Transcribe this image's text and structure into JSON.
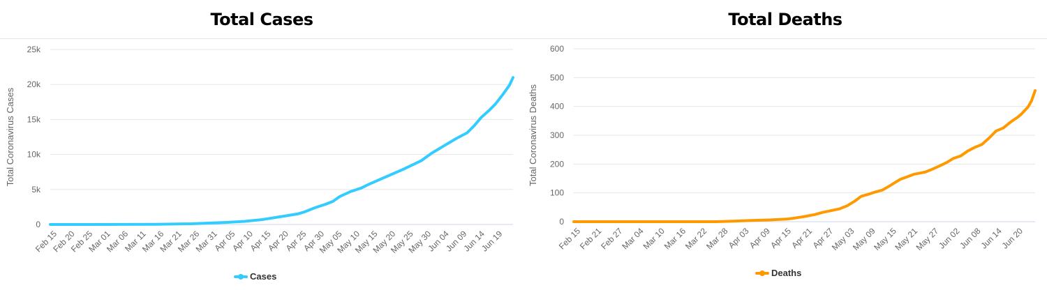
{
  "chart_data": [
    {
      "type": "line",
      "title": "Total Cases",
      "xlabel": "",
      "ylabel": "Total Coronavirus Cases",
      "ylim": [
        0,
        25000
      ],
      "y_ticks": [
        0,
        5000,
        10000,
        15000,
        20000,
        25000
      ],
      "y_tick_labels": [
        "0",
        "5k",
        "10k",
        "15k",
        "20k",
        "25k"
      ],
      "x_tick_labels": [
        "Feb 15",
        "Feb 20",
        "Feb 25",
        "Mar 01",
        "Mar 06",
        "Mar 11",
        "Mar 16",
        "Mar 21",
        "Mar 26",
        "Mar 31",
        "Apr 05",
        "Apr 10",
        "Apr 15",
        "Apr 20",
        "Apr 25",
        "Apr 30",
        "May 05",
        "May 10",
        "May 15",
        "May 20",
        "May 25",
        "May 30",
        "Jun 04",
        "Jun 09",
        "Jun 14",
        "Jun 19"
      ],
      "x_range_days": [
        0,
        131
      ],
      "series": [
        {
          "name": "Cases",
          "color": "#33ccff",
          "x_days": [
            0,
            20,
            30,
            40,
            45,
            50,
            55,
            60,
            65,
            70,
            72,
            75,
            78,
            80,
            82,
            85,
            88,
            90,
            95,
            100,
            105,
            108,
            110,
            113,
            115,
            118,
            120,
            122,
            124,
            126,
            128,
            130,
            131
          ],
          "values": [
            0,
            5,
            30,
            100,
            200,
            300,
            450,
            700,
            1100,
            1500,
            1800,
            2400,
            2900,
            3300,
            4000,
            4700,
            5200,
            5700,
            6800,
            7900,
            9100,
            10200,
            10800,
            11700,
            12300,
            13100,
            14100,
            15300,
            16200,
            17200,
            18500,
            19900,
            21000
          ]
        }
      ]
    },
    {
      "type": "line",
      "title": "Total Deaths",
      "xlabel": "",
      "ylabel": "Total Coronavirus Deaths",
      "ylim": [
        0,
        600
      ],
      "y_ticks": [
        0,
        100,
        200,
        300,
        400,
        500,
        600
      ],
      "y_tick_labels": [
        "0",
        "100",
        "200",
        "300",
        "400",
        "500",
        "600"
      ],
      "x_tick_labels": [
        "Feb 15",
        "Feb 21",
        "Feb 27",
        "Mar 04",
        "Mar 10",
        "Mar 16",
        "Mar 22",
        "Mar 28",
        "Apr 03",
        "Apr 09",
        "Apr 15",
        "Apr 21",
        "Apr 27",
        "May 03",
        "May 09",
        "May 15",
        "May 21",
        "May 27",
        "Jun 02",
        "Jun 08",
        "Jun 14",
        "Jun 20"
      ],
      "x_range_days": [
        0,
        130
      ],
      "series": [
        {
          "name": "Deaths",
          "color": "#ff9900",
          "x_days": [
            0,
            40,
            45,
            50,
            55,
            60,
            62,
            65,
            68,
            70,
            72,
            75,
            77,
            79,
            81,
            83,
            85,
            87,
            89,
            92,
            94,
            96,
            99,
            101,
            103,
            105,
            107,
            109,
            111,
            113,
            115,
            117,
            119,
            121,
            123,
            125,
            126,
            127,
            128,
            129,
            130
          ],
          "values": [
            0,
            0,
            2,
            4,
            6,
            9,
            12,
            18,
            25,
            32,
            37,
            45,
            55,
            70,
            88,
            95,
            103,
            110,
            124,
            147,
            156,
            165,
            172,
            182,
            193,
            205,
            220,
            228,
            245,
            258,
            268,
            290,
            315,
            325,
            345,
            362,
            372,
            385,
            398,
            420,
            455
          ]
        }
      ]
    }
  ],
  "legend": {
    "cases_label": "Cases",
    "deaths_label": "Deaths"
  }
}
